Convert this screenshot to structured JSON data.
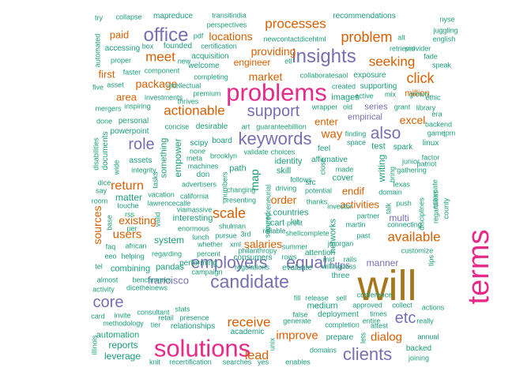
{
  "colors": {
    "teal": "#1B9E77",
    "orange": "#D95F02",
    "purple": "#7570B3",
    "magenta": "#E7298A",
    "olive": "#A6761D"
  },
  "words": [
    {
      "text": "will",
      "color": "olive"
    },
    {
      "text": "terms",
      "color": "magenta"
    },
    {
      "text": "problems",
      "color": "magenta"
    },
    {
      "text": "solutions",
      "color": "magenta"
    },
    {
      "text": "candidate",
      "color": "purple"
    },
    {
      "text": "employers",
      "color": "purple"
    },
    {
      "text": "equal",
      "color": "purple"
    },
    {
      "text": "insights",
      "color": "purple"
    },
    {
      "text": "keywords",
      "color": "purple"
    },
    {
      "text": "support",
      "color": "purple"
    },
    {
      "text": "office",
      "color": "purple"
    },
    {
      "text": "clients",
      "color": "purple"
    },
    {
      "text": "core",
      "color": "purple"
    },
    {
      "text": "also",
      "color": "purple"
    },
    {
      "text": "role",
      "color": "purple"
    },
    {
      "text": "etc",
      "color": "purple"
    },
    {
      "text": "processes",
      "color": "orange"
    },
    {
      "text": "problem",
      "color": "orange"
    },
    {
      "text": "seeking",
      "color": "orange"
    },
    {
      "text": "actionable",
      "color": "orange"
    },
    {
      "text": "scale",
      "color": "orange"
    },
    {
      "text": "available",
      "color": "orange"
    },
    {
      "text": "meet",
      "color": "orange"
    },
    {
      "text": "click",
      "color": "orange"
    },
    {
      "text": "users",
      "color": "orange"
    },
    {
      "text": "receive",
      "color": "orange"
    },
    {
      "text": "return",
      "color": "orange"
    },
    {
      "text": "improve",
      "color": "orange"
    },
    {
      "text": "lead",
      "color": "orange"
    },
    {
      "text": "dialog",
      "color": "orange"
    },
    {
      "text": "sources",
      "color": "orange"
    },
    {
      "text": "locations",
      "color": "orange"
    },
    {
      "text": "providing",
      "color": "orange"
    },
    {
      "text": "market",
      "color": "orange"
    },
    {
      "text": "package",
      "color": "orange"
    },
    {
      "text": "way",
      "color": "orange"
    },
    {
      "text": "enter",
      "color": "orange"
    },
    {
      "text": "excel",
      "color": "orange"
    },
    {
      "text": "order",
      "color": "orange"
    },
    {
      "text": "salaries",
      "color": "orange"
    },
    {
      "text": "activities",
      "color": "orange"
    },
    {
      "text": "existing",
      "color": "orange"
    },
    {
      "text": "paid",
      "color": "orange"
    },
    {
      "text": "first",
      "color": "orange"
    },
    {
      "text": "area",
      "color": "orange"
    },
    {
      "text": "engineer",
      "color": "orange"
    },
    {
      "text": "endif",
      "color": "orange"
    },
    {
      "text": "million",
      "color": "orange"
    },
    {
      "text": "francisco",
      "color": "purple"
    },
    {
      "text": "multi",
      "color": "purple"
    },
    {
      "text": "https",
      "color": "purple"
    },
    {
      "text": "manner",
      "color": "purple"
    },
    {
      "text": "series",
      "color": "purple"
    },
    {
      "text": "empirical",
      "color": "purple"
    },
    {
      "text": "mapreduce",
      "color": "teal"
    },
    {
      "text": "transitindia",
      "color": "teal"
    },
    {
      "text": "recommendations",
      "color": "teal"
    },
    {
      "text": "nyse",
      "color": "teal"
    },
    {
      "text": "collapse",
      "color": "teal"
    },
    {
      "text": "try",
      "color": "teal"
    },
    {
      "text": "automated",
      "color": "teal"
    },
    {
      "text": "accessing",
      "color": "teal"
    },
    {
      "text": "proper",
      "color": "teal"
    },
    {
      "text": "box",
      "color": "teal"
    },
    {
      "text": "founded",
      "color": "teal"
    },
    {
      "text": "perspectives",
      "color": "teal"
    },
    {
      "text": "pdf",
      "color": "teal"
    },
    {
      "text": "certification",
      "color": "teal"
    },
    {
      "text": "acquisition",
      "color": "teal"
    },
    {
      "text": "welcome",
      "color": "teal"
    },
    {
      "text": "newcontactdicehtml",
      "color": "teal"
    },
    {
      "text": "etl",
      "color": "teal"
    },
    {
      "text": "retrieval",
      "color": "teal"
    },
    {
      "text": "provider",
      "color": "teal"
    },
    {
      "text": "juggling",
      "color": "teal"
    },
    {
      "text": "english",
      "color": "teal"
    },
    {
      "text": "alt",
      "color": "teal"
    },
    {
      "text": "fade",
      "color": "teal"
    },
    {
      "text": "speak",
      "color": "teal"
    },
    {
      "text": "faster",
      "color": "teal"
    },
    {
      "text": "component",
      "color": "teal"
    },
    {
      "text": "completing",
      "color": "teal"
    },
    {
      "text": "intellectual",
      "color": "teal"
    },
    {
      "text": "premium",
      "color": "teal"
    },
    {
      "text": "five",
      "color": "teal"
    },
    {
      "text": "asset",
      "color": "teal"
    },
    {
      "text": "investments",
      "color": "teal"
    },
    {
      "text": "thrives",
      "color": "teal"
    },
    {
      "text": "mergers",
      "color": "teal"
    },
    {
      "text": "inspiring",
      "color": "teal"
    },
    {
      "text": "done",
      "color": "teal"
    },
    {
      "text": "personal",
      "color": "teal"
    },
    {
      "text": "powerpoint",
      "color": "teal"
    },
    {
      "text": "concise",
      "color": "teal"
    },
    {
      "text": "desirable",
      "color": "teal"
    },
    {
      "text": "art",
      "color": "teal"
    },
    {
      "text": "guaranteebillion",
      "color": "teal"
    },
    {
      "text": "collaboratesaol",
      "color": "teal"
    },
    {
      "text": "exposure",
      "color": "teal"
    },
    {
      "text": "created",
      "color": "teal"
    },
    {
      "text": "supporting",
      "color": "teal"
    },
    {
      "text": "active",
      "color": "teal"
    },
    {
      "text": "mix",
      "color": "teal"
    },
    {
      "text": "images",
      "color": "teal"
    },
    {
      "text": "grant",
      "color": "teal"
    },
    {
      "text": "library",
      "color": "teal"
    },
    {
      "text": "wrapper",
      "color": "teal"
    },
    {
      "text": "old",
      "color": "teal"
    },
    {
      "text": "backend",
      "color": "teal"
    },
    {
      "text": "game",
      "color": "teal"
    },
    {
      "text": "jpm",
      "color": "teal"
    },
    {
      "text": "linux",
      "color": "teal"
    },
    {
      "text": "spark",
      "color": "teal"
    },
    {
      "text": "test",
      "color": "teal"
    },
    {
      "text": "factor",
      "color": "teal"
    },
    {
      "text": "junior",
      "color": "teal"
    },
    {
      "text": "patriot",
      "color": "teal"
    },
    {
      "text": "gathering",
      "color": "teal"
    },
    {
      "text": "domain",
      "color": "teal"
    },
    {
      "text": "texas",
      "color": "teal"
    },
    {
      "text": "automate",
      "color": "teal"
    },
    {
      "text": "push",
      "color": "teal"
    },
    {
      "text": "connecting",
      "color": "teal"
    },
    {
      "text": "partner",
      "color": "teal"
    },
    {
      "text": "investor",
      "color": "teal"
    },
    {
      "text": "martin",
      "color": "teal"
    },
    {
      "text": "past",
      "color": "teal"
    },
    {
      "text": "feel",
      "color": "teal"
    },
    {
      "text": "finding",
      "color": "teal"
    },
    {
      "text": "space",
      "color": "teal"
    },
    {
      "text": "affirmative",
      "color": "teal"
    },
    {
      "text": "cover",
      "color": "teal"
    },
    {
      "text": "made",
      "color": "teal"
    },
    {
      "text": "potential",
      "color": "teal"
    },
    {
      "text": "src",
      "color": "teal"
    },
    {
      "text": "skill",
      "color": "teal"
    },
    {
      "text": "identity",
      "color": "teal"
    },
    {
      "text": "choices",
      "color": "teal"
    },
    {
      "text": "validate",
      "color": "teal"
    },
    {
      "text": "path",
      "color": "teal"
    },
    {
      "text": "board",
      "color": "teal"
    },
    {
      "text": "scipy",
      "color": "teal"
    },
    {
      "text": "none",
      "color": "teal"
    },
    {
      "text": "meta",
      "color": "teal"
    },
    {
      "text": "machines",
      "color": "teal"
    },
    {
      "text": "don",
      "color": "teal"
    },
    {
      "text": "advertisers",
      "color": "teal"
    },
    {
      "text": "changing",
      "color": "teal"
    },
    {
      "text": "presenting",
      "color": "teal"
    },
    {
      "text": "driving",
      "color": "teal"
    },
    {
      "text": "follows",
      "color": "teal"
    },
    {
      "text": "thanks",
      "color": "teal"
    },
    {
      "text": "countries",
      "color": "teal"
    },
    {
      "text": "cart",
      "color": "teal"
    },
    {
      "text": "lot",
      "color": "teal"
    },
    {
      "text": "profit",
      "color": "teal"
    },
    {
      "text": "shellcomplete",
      "color": "teal"
    },
    {
      "text": "assets",
      "color": "teal"
    },
    {
      "text": "integrity",
      "color": "teal"
    },
    {
      "text": "dice",
      "color": "teal"
    },
    {
      "text": "say",
      "color": "teal"
    },
    {
      "text": "room",
      "color": "teal"
    },
    {
      "text": "matter",
      "color": "teal"
    },
    {
      "text": "vacation",
      "color": "teal"
    },
    {
      "text": "california",
      "color": "teal"
    },
    {
      "text": "touche",
      "color": "teal"
    },
    {
      "text": "lawrencecalle",
      "color": "teal"
    },
    {
      "text": "rss",
      "color": "teal"
    },
    {
      "text": "viamassive",
      "color": "teal"
    },
    {
      "text": "interesting",
      "color": "teal"
    },
    {
      "text": "enormous",
      "color": "teal"
    },
    {
      "text": "shulman",
      "color": "teal"
    },
    {
      "text": "reliable",
      "color": "teal"
    },
    {
      "text": "per",
      "color": "teal"
    },
    {
      "text": "lunch",
      "color": "teal"
    },
    {
      "text": "pursue",
      "color": "teal"
    },
    {
      "text": "3rd",
      "color": "teal"
    },
    {
      "text": "system",
      "color": "teal"
    },
    {
      "text": "african",
      "color": "teal"
    },
    {
      "text": "whether",
      "color": "teal"
    },
    {
      "text": "xml",
      "color": "teal"
    },
    {
      "text": "philanthropy",
      "color": "teal"
    },
    {
      "text": "summer",
      "color": "teal"
    },
    {
      "text": "rows",
      "color": "teal"
    },
    {
      "text": "mid",
      "color": "teal"
    },
    {
      "text": "rails",
      "color": "teal"
    },
    {
      "text": "customize",
      "color": "teal"
    },
    {
      "text": "faq",
      "color": "teal"
    },
    {
      "text": "helping",
      "color": "teal"
    },
    {
      "text": "regarding",
      "color": "teal"
    },
    {
      "text": "percent",
      "color": "teal"
    },
    {
      "text": "consumers",
      "color": "teal"
    },
    {
      "text": "attention",
      "color": "teal"
    },
    {
      "text": "jmorgan",
      "color": "teal"
    },
    {
      "text": "eeo",
      "color": "teal"
    },
    {
      "text": "performing",
      "color": "teal"
    },
    {
      "text": "campaign",
      "color": "teal"
    },
    {
      "text": "regulations",
      "color": "teal"
    },
    {
      "text": "evaluate",
      "color": "teal"
    },
    {
      "text": "willingness",
      "color": "teal"
    },
    {
      "text": "tel",
      "color": "teal"
    },
    {
      "text": "combining",
      "color": "teal"
    },
    {
      "text": "pandas",
      "color": "teal"
    },
    {
      "text": "three",
      "color": "teal"
    },
    {
      "text": "almost",
      "color": "teal"
    },
    {
      "text": "benchmarks",
      "color": "teal"
    },
    {
      "text": "activity",
      "color": "teal"
    },
    {
      "text": "dicetheinews",
      "color": "teal"
    },
    {
      "text": "fill",
      "color": "teal"
    },
    {
      "text": "release",
      "color": "teal"
    },
    {
      "text": "sell",
      "color": "teal"
    },
    {
      "text": "approved",
      "color": "teal"
    },
    {
      "text": "collect",
      "color": "teal"
    },
    {
      "text": "card",
      "color": "teal"
    },
    {
      "text": "invite",
      "color": "teal"
    },
    {
      "text": "stats",
      "color": "teal"
    },
    {
      "text": "retail",
      "color": "teal"
    },
    {
      "text": "presence",
      "color": "teal"
    },
    {
      "text": "methodology",
      "color": "teal"
    },
    {
      "text": "consultant",
      "color": "teal"
    },
    {
      "text": "tier",
      "color": "teal"
    },
    {
      "text": "relationships",
      "color": "teal"
    },
    {
      "text": "academic",
      "color": "teal"
    },
    {
      "text": "false",
      "color": "teal"
    },
    {
      "text": "generate",
      "color": "teal"
    },
    {
      "text": "deployment",
      "color": "teal"
    },
    {
      "text": "completion",
      "color": "teal"
    },
    {
      "text": "entire",
      "color": "teal"
    },
    {
      "text": "times",
      "color": "teal"
    },
    {
      "text": "attest",
      "color": "teal"
    },
    {
      "text": "really",
      "color": "teal"
    },
    {
      "text": "actions",
      "color": "teal"
    },
    {
      "text": "automation",
      "color": "teal"
    },
    {
      "text": "reports",
      "color": "teal"
    },
    {
      "text": "leverage",
      "color": "teal"
    },
    {
      "text": "prepare",
      "color": "teal"
    },
    {
      "text": "annual",
      "color": "teal"
    },
    {
      "text": "backed",
      "color": "teal"
    },
    {
      "text": "joining",
      "color": "teal"
    },
    {
      "text": "knit",
      "color": "teal"
    },
    {
      "text": "recertification",
      "color": "teal"
    },
    {
      "text": "searches",
      "color": "teal"
    },
    {
      "text": "yes",
      "color": "teal"
    },
    {
      "text": "enables",
      "color": "teal"
    },
    {
      "text": "domains",
      "color": "teal"
    },
    {
      "text": "medium",
      "color": "teal"
    },
    {
      "text": "conference",
      "color": "teal"
    },
    {
      "text": "illinois",
      "color": "teal"
    },
    {
      "text": "unix",
      "color": "teal"
    },
    {
      "text": "brooklyn",
      "color": "teal"
    },
    {
      "text": "networks",
      "color": "teal"
    },
    {
      "text": "writing",
      "color": "teal"
    },
    {
      "text": "bring",
      "color": "teal"
    },
    {
      "text": "disciplines",
      "color": "teal"
    },
    {
      "text": "regardless",
      "color": "teal"
    },
    {
      "text": "ethic",
      "color": "teal"
    },
    {
      "text": "disabilities",
      "color": "teal"
    },
    {
      "text": "documents",
      "color": "teal"
    },
    {
      "text": "something",
      "color": "teal"
    },
    {
      "text": "empower",
      "color": "teal"
    },
    {
      "text": "numbers",
      "color": "teal"
    },
    {
      "text": "map",
      "color": "teal"
    },
    {
      "text": "entrepreneurial",
      "color": "teal"
    },
    {
      "text": "tips",
      "color": "teal"
    },
    {
      "text": "secured",
      "color": "teal"
    },
    {
      "text": "grown",
      "color": "teal"
    },
    {
      "text": "era",
      "color": "teal"
    },
    {
      "text": "county",
      "color": "teal"
    },
    {
      "text": "wide",
      "color": "teal"
    },
    {
      "text": "tasks",
      "color": "teal"
    },
    {
      "text": "valid",
      "color": "teal"
    },
    {
      "text": "talk",
      "color": "teal"
    },
    {
      "text": "close",
      "color": "teal"
    },
    {
      "text": "base",
      "color": "teal"
    },
    {
      "text": "lets",
      "color": "teal"
    },
    {
      "text": "new",
      "color": "teal"
    }
  ]
}
